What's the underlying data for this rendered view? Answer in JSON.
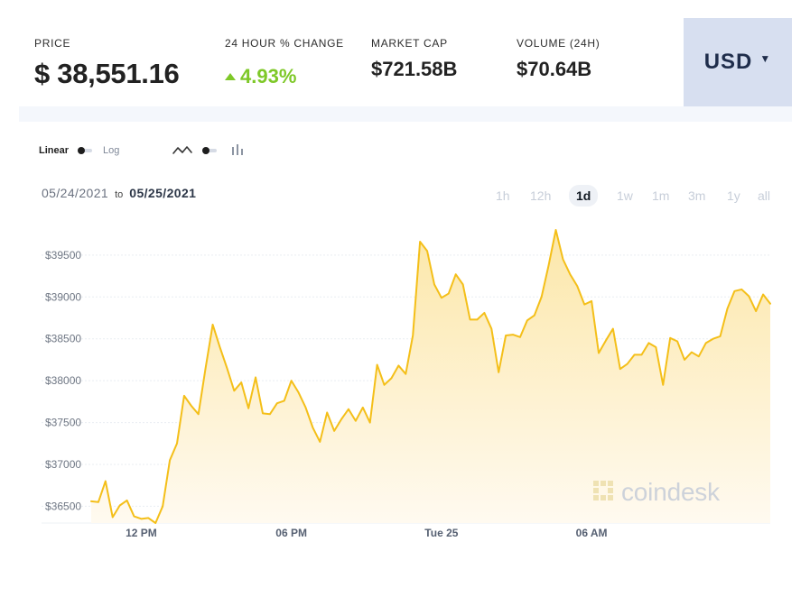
{
  "metrics": {
    "price": {
      "label": "PRICE",
      "value": "$ 38,551.16"
    },
    "change_24h": {
      "label": "24 HOUR % CHANGE",
      "value": "4.93%"
    },
    "market_cap": {
      "label": "MARKET CAP",
      "value": "$721.58B"
    },
    "volume_24h": {
      "label": "VOLUME (24H)",
      "value": "$70.64B"
    }
  },
  "currency": {
    "selected": "USD"
  },
  "controls": {
    "linear_label": "Linear",
    "log_label": "Log",
    "line_icon": "line-chart-icon",
    "bar_icon": "bar-chart-icon"
  },
  "date_range": {
    "start": "05/24/2021",
    "to_label": "to",
    "end": "05/25/2021"
  },
  "ranges": [
    "1h",
    "12h",
    "1d",
    "1w",
    "1m",
    "3m",
    "1y",
    "all"
  ],
  "active_range": "1d",
  "watermark": {
    "text": "coindesk"
  },
  "colors": {
    "line": "#f4bf19",
    "fill_top": "#fce7a9",
    "fill_bottom": "#fffaf0",
    "positive": "#7ec828",
    "currency_box": "#d7dff0",
    "grid": "#e9edf2",
    "active_range_bg": "#eef1f6"
  },
  "chart_data": {
    "type": "line",
    "title": "",
    "xlabel": "",
    "ylabel": "",
    "x_labels": [
      "12 PM",
      "06 PM",
      "Tue 25",
      "06 AM"
    ],
    "x_label_indices": [
      7,
      28,
      49,
      70
    ],
    "y_ticks": [
      36500,
      37000,
      37500,
      38000,
      38500,
      39000,
      39500
    ],
    "y_tick_labels": [
      "$36500",
      "$37000",
      "$37500",
      "$38000",
      "$38500",
      "$39000",
      "$39500"
    ],
    "ylim": [
      36300,
      39800
    ],
    "grid": true,
    "series": [
      {
        "values": [
          36560,
          36550,
          36800,
          36370,
          36510,
          36570,
          36380,
          36350,
          36360,
          36300,
          36500,
          37050,
          37250,
          37820,
          37700,
          37600,
          38150,
          38670,
          38400,
          38150,
          37880,
          37980,
          37670,
          38040,
          37610,
          37600,
          37730,
          37760,
          38000,
          37860,
          37680,
          37440,
          37270,
          37620,
          37400,
          37540,
          37660,
          37520,
          37680,
          37500,
          38190,
          37950,
          38030,
          38180,
          38080,
          38540,
          39660,
          39550,
          39150,
          38990,
          39040,
          39270,
          39150,
          38730,
          38730,
          38810,
          38620,
          38100,
          38540,
          38550,
          38520,
          38720,
          38780,
          39000,
          39380,
          39800,
          39450,
          39270,
          39130,
          38910,
          38950,
          38330,
          38480,
          38620,
          38140,
          38200,
          38310,
          38310,
          38450,
          38400,
          37950,
          38510,
          38470,
          38250,
          38340,
          38290,
          38450,
          38500,
          38530,
          38860,
          39070,
          39090,
          39010,
          38830,
          39030,
          38920
        ]
      }
    ]
  }
}
